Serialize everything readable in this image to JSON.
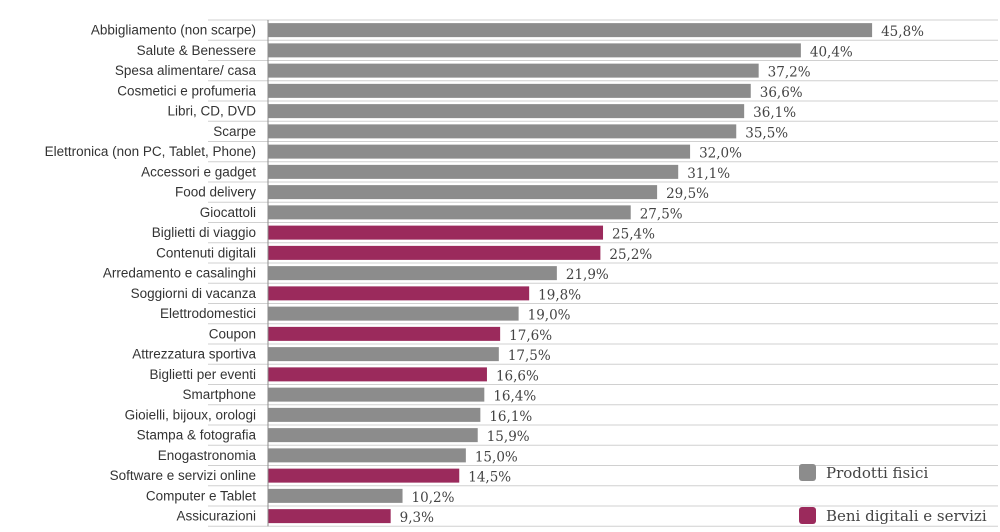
{
  "chart_data": {
    "type": "bar",
    "orientation": "horizontal",
    "ylim": [
      0,
      50
    ],
    "value_format": "percent_comma_1",
    "categories": [
      "Abbigliamento (non scarpe)",
      "Salute & Benessere",
      "Spesa alimentare/ casa",
      "Cosmetici e profumeria",
      "Libri, CD, DVD",
      "Scarpe",
      "Elettronica (non PC, Tablet, Phone)",
      "Accessori e gadget",
      "Food delivery",
      "Giocattoli",
      "Biglietti di viaggio",
      "Contenuti digitali",
      "Arredamento e casalinghi",
      "Soggiorni di vacanza",
      "Elettrodomestici",
      "Coupon",
      "Attrezzatura sportiva",
      "Biglietti per eventi",
      "Smartphone",
      "Gioielli, bijoux, orologi",
      "Stampa & fotografia",
      "Enogastronomia",
      "Software e servizi online",
      "Computer e Tablet",
      "Assicurazioni"
    ],
    "values": [
      45.8,
      40.4,
      37.2,
      36.6,
      36.1,
      35.5,
      32.0,
      31.1,
      29.5,
      27.5,
      25.4,
      25.2,
      21.9,
      19.8,
      19.0,
      17.6,
      17.5,
      16.6,
      16.4,
      16.1,
      15.9,
      15.0,
      14.5,
      10.2,
      9.3
    ],
    "value_labels": [
      "45,8%",
      "40,4%",
      "37,2%",
      "36,6%",
      "36,1%",
      "35,5%",
      "32,0%",
      "31,1%",
      "29,5%",
      "27,5%",
      "25,4%",
      "25,2%",
      "21,9%",
      "19,8%",
      "19,0%",
      "17,6%",
      "17,5%",
      "16,6%",
      "16,4%",
      "16,1%",
      "15,9%",
      "15,0%",
      "14,5%",
      "10,2%",
      "9,3%"
    ],
    "groups": [
      "fisici",
      "fisici",
      "fisici",
      "fisici",
      "fisici",
      "fisici",
      "fisici",
      "fisici",
      "fisici",
      "fisici",
      "digitali",
      "digitali",
      "fisici",
      "digitali",
      "fisici",
      "digitali",
      "fisici",
      "digitali",
      "fisici",
      "fisici",
      "fisici",
      "fisici",
      "digitali",
      "fisici",
      "digitali"
    ],
    "series": [
      {
        "key": "fisici",
        "name": "Prodotti fisici",
        "color": "#8c8c8c"
      },
      {
        "key": "digitali",
        "name": "Beni digitali e servizi",
        "color": "#9b2a5c"
      }
    ],
    "grid": true,
    "legend_position": "bottom-right"
  }
}
